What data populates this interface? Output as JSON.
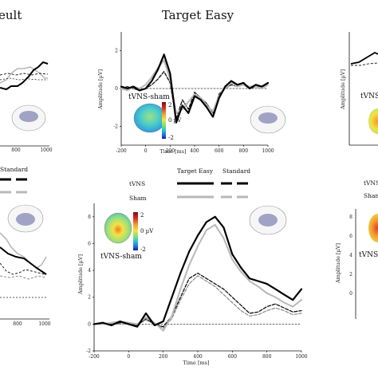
{
  "titles": {
    "left_partial": "eult",
    "center": "Target Easy"
  },
  "colors": {
    "tvns": "#000000",
    "sham": "#b8b8b8",
    "standard_dashed": "#222222",
    "colorbar": [
      "#1a1a8c",
      "#1f6fe0",
      "#2cc6d6",
      "#8ee06b",
      "#f2e244",
      "#f29b30",
      "#d8251f",
      "#7a0f12"
    ]
  },
  "top_center": {
    "ylabel": "Amplitude [µV]",
    "xlabel": "Time [ms]",
    "yticks": [
      "2",
      "0",
      "-2"
    ],
    "xticks": [
      "-200",
      "0",
      "200",
      "400",
      "600",
      "800",
      "1000"
    ],
    "inset_title": "tVNS-sham",
    "colorbar_labels": [
      "2",
      "0 µV",
      "-2"
    ]
  },
  "top_right": {
    "ylabel": "Amplitude [µV]",
    "inset_title": "tVNS"
  },
  "top_left": {
    "xticks": [
      "800",
      "1000"
    ]
  },
  "legend_left": {
    "standard": "Standard"
  },
  "legend_center": {
    "col1": "Target Easy",
    "col2": "Standard",
    "row1": "tVNS",
    "row2": "Sham"
  },
  "legend_right": {
    "row1": "tVNS",
    "row2": "Sham"
  },
  "bottom_center": {
    "ylabel": "Amplitude [µV]",
    "xlabel": "Time [ms]",
    "yticks": [
      "8",
      "6",
      "4",
      "2",
      "0",
      "-2"
    ],
    "xticks": [
      "-200",
      "0",
      "200",
      "400",
      "600",
      "800",
      "1000"
    ],
    "inset_title": "tVNS-sham",
    "colorbar_labels": [
      "2",
      "0 µV",
      "-2"
    ]
  },
  "bottom_left": {
    "xticks": [
      "800",
      "1000"
    ]
  },
  "bottom_right": {
    "yticks": [
      "8",
      "6",
      "4",
      "2",
      "0"
    ],
    "ylabel": "Amplitude [µV]",
    "inset_title": "tVNS-"
  },
  "chart_data": [
    {
      "type": "line",
      "panel": "top-center",
      "title": "Target Easy",
      "xlabel": "Time [ms]",
      "ylabel": "Amplitude [µV]",
      "xlim": [
        -200,
        1000
      ],
      "ylim": [
        -3,
        3
      ],
      "x": [
        -200,
        -150,
        -100,
        -50,
        0,
        50,
        100,
        150,
        200,
        250,
        300,
        350,
        400,
        450,
        500,
        550,
        600,
        650,
        700,
        750,
        800,
        850,
        900,
        950,
        1000
      ],
      "series": [
        {
          "name": "tVNS",
          "style": "solid-black",
          "values": [
            0.1,
            0.0,
            0.1,
            -0.1,
            0.0,
            0.4,
            1.0,
            1.8,
            0.8,
            -1.8,
            -0.9,
            -1.3,
            -0.4,
            -0.6,
            -1.0,
            -1.5,
            -0.5,
            0.1,
            0.4,
            0.2,
            0.3,
            0.0,
            0.2,
            0.1,
            0.3
          ]
        },
        {
          "name": "Sham",
          "style": "solid-gray",
          "values": [
            0.0,
            -0.1,
            0.1,
            0.0,
            0.2,
            0.6,
            1.1,
            1.5,
            0.5,
            -1.3,
            -1.1,
            -0.7,
            -0.3,
            -0.5,
            -0.9,
            -1.2,
            -0.4,
            0.0,
            0.3,
            0.1,
            0.2,
            0.1,
            0.1,
            0.0,
            0.2
          ]
        },
        {
          "style": "dashed-black",
          "values": [
            0.0,
            0.1,
            0.0,
            -0.1,
            0.0,
            0.2,
            0.5,
            0.9,
            0.3,
            -1.6,
            -0.6,
            -1.1,
            -0.2,
            -0.5,
            -0.8,
            -1.3,
            -0.3,
            0.0,
            0.2,
            0.1,
            0.2,
            0.0,
            0.1,
            0.1,
            0.2
          ]
        },
        {
          "style": "dashed-flat",
          "values": [
            0.0,
            0.0,
            0.0,
            0.0,
            0.0,
            0.0,
            0.0,
            0.0,
            0.0,
            0.0,
            0.0,
            0.0,
            0.0,
            0.0,
            0.0,
            0.0,
            0.0,
            0.0,
            0.0,
            0.0,
            0.0,
            0.0,
            0.0,
            0.0,
            0.0
          ]
        }
      ]
    },
    {
      "type": "line",
      "panel": "bottom-center",
      "xlabel": "Time [ms]",
      "ylabel": "Amplitude [µV]",
      "xlim": [
        -200,
        1000
      ],
      "ylim": [
        -2,
        9
      ],
      "x": [
        -200,
        -150,
        -100,
        -50,
        0,
        50,
        100,
        150,
        200,
        250,
        300,
        350,
        400,
        450,
        500,
        550,
        600,
        650,
        700,
        750,
        800,
        850,
        900,
        950,
        1000
      ],
      "series": [
        {
          "name": "tVNS",
          "style": "solid-black",
          "values": [
            0.0,
            0.1,
            -0.1,
            0.2,
            0.0,
            -0.2,
            0.8,
            -0.1,
            0.2,
            2.0,
            3.8,
            5.4,
            6.6,
            7.6,
            8.0,
            7.2,
            5.2,
            4.2,
            3.4,
            3.2,
            3.0,
            2.6,
            2.2,
            1.8,
            2.6
          ]
        },
        {
          "name": "Sham",
          "style": "solid-gray",
          "values": [
            0.0,
            0.0,
            0.1,
            0.2,
            0.1,
            0.0,
            0.5,
            0.1,
            -0.5,
            0.6,
            2.6,
            4.4,
            5.8,
            7.0,
            7.4,
            6.4,
            4.8,
            3.9,
            3.2,
            2.8,
            2.3,
            2.0,
            1.6,
            1.3,
            1.8
          ]
        },
        {
          "name": "Target Easy (Standard)",
          "style": "dashed-black",
          "values": [
            0.0,
            0.1,
            0.0,
            0.1,
            0.1,
            -0.1,
            0.4,
            0.0,
            -0.2,
            0.6,
            2.0,
            3.4,
            3.8,
            3.4,
            3.0,
            2.6,
            2.0,
            1.4,
            0.8,
            0.9,
            1.3,
            1.5,
            1.2,
            0.9,
            1.0
          ]
        },
        {
          "style": "dashed-gray",
          "values": [
            0.0,
            0.0,
            0.1,
            0.0,
            0.0,
            0.0,
            0.3,
            0.0,
            -0.3,
            0.4,
            1.8,
            3.0,
            3.6,
            3.2,
            2.8,
            2.2,
            1.6,
            1.0,
            0.6,
            0.7,
            1.0,
            1.2,
            1.0,
            0.7,
            0.8
          ]
        },
        {
          "style": "dashed-flat",
          "values": [
            0.0,
            0.0,
            0.0,
            0.0,
            0.0,
            0.0,
            0.0,
            0.0,
            0.0,
            0.0,
            0.0,
            0.0,
            0.0,
            0.0,
            0.0,
            0.0,
            0.0,
            0.0,
            0.0,
            0.0,
            0.0,
            0.0,
            0.0,
            0.0,
            0.0
          ]
        }
      ]
    }
  ]
}
